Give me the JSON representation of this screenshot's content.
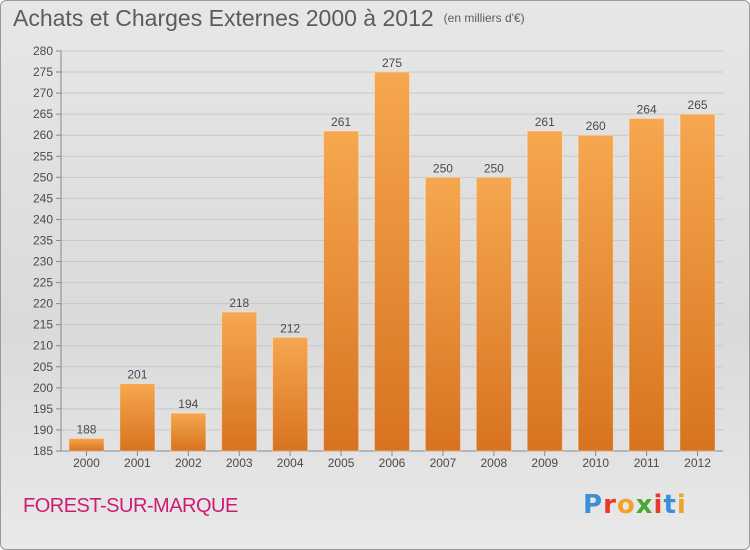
{
  "title": "Achats et Charges Externes 2000 à 2012",
  "subtitle": "(en milliers d'€)",
  "location": "FOREST-SUR-MARQUE",
  "logo_letters": [
    "P",
    "r",
    "o",
    "x",
    "i",
    "t",
    "i"
  ],
  "logo_colors": [
    "#3a8fd6",
    "#e8392a",
    "#f0a32a",
    "#4aa832",
    "#e8392a",
    "#3a8fd6",
    "#f0a32a"
  ],
  "colors": {
    "bar_top": "#f6a74f",
    "bar_bottom": "#d8731f",
    "label": "#4a4a4a",
    "grid": "#c8c8c8"
  },
  "chart_data": {
    "type": "bar",
    "categories": [
      "2000",
      "2001",
      "2002",
      "2003",
      "2004",
      "2005",
      "2006",
      "2007",
      "2008",
      "2009",
      "2010",
      "2011",
      "2012"
    ],
    "values": [
      188,
      201,
      194,
      218,
      212,
      261,
      275,
      250,
      250,
      261,
      260,
      264,
      265
    ],
    "ylim": [
      185,
      280
    ],
    "yticks": [
      185,
      190,
      195,
      200,
      205,
      210,
      215,
      220,
      225,
      230,
      235,
      240,
      245,
      250,
      255,
      260,
      265,
      270,
      275,
      280
    ],
    "grid": true,
    "title": "Achats et Charges Externes 2000 à 2012"
  }
}
